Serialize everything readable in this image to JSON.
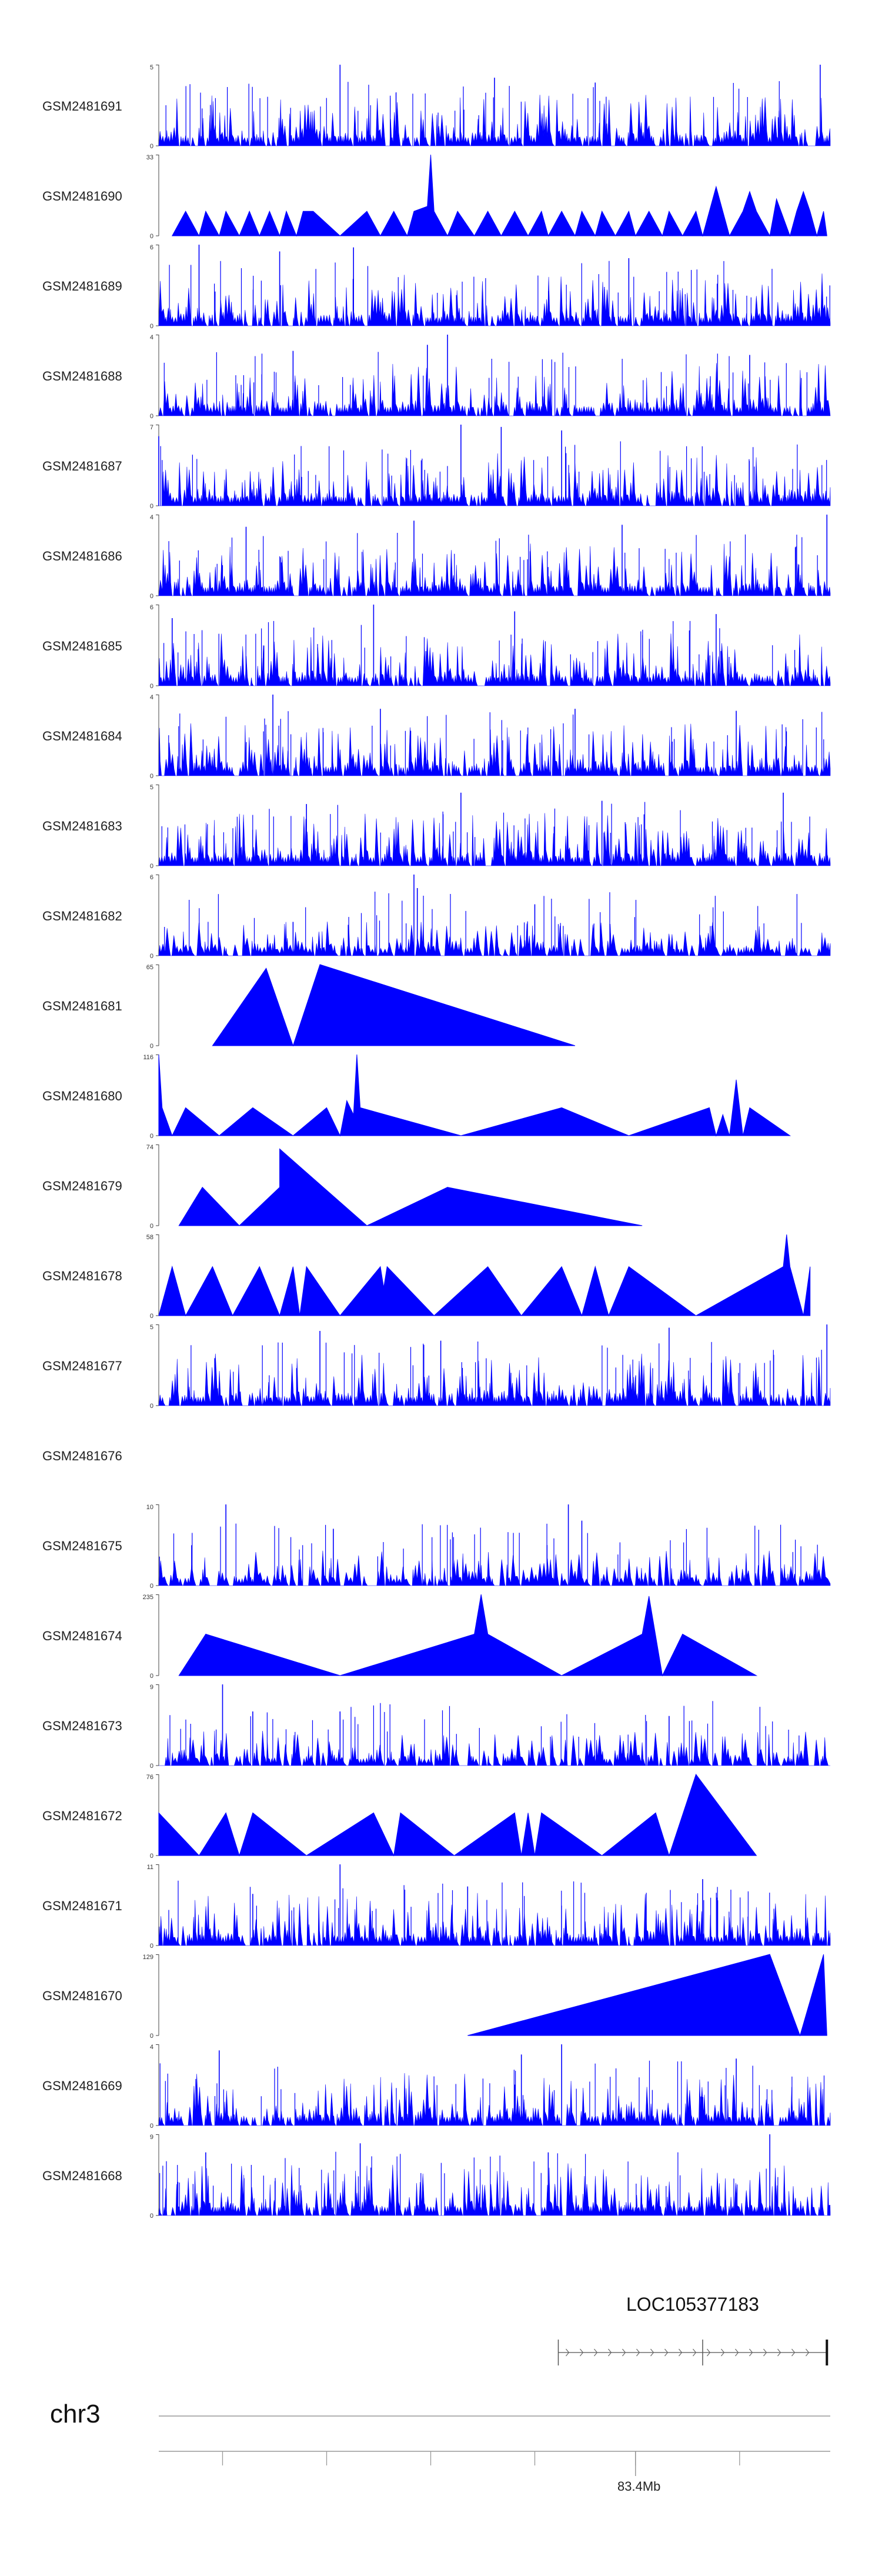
{
  "chart_data": {
    "type": "area",
    "color": "#0000ff",
    "tracks": [
      {
        "name": "GSM2481691",
        "ymax": 5,
        "ylim": [
          0,
          5
        ],
        "style": "dense",
        "peaks": [
          [
            0.27,
            5
          ],
          [
            0.985,
            5
          ],
          [
            0.5,
            4.2
          ],
          [
            0.65,
            3.9
          ]
        ]
      },
      {
        "name": "GSM2481690",
        "ymax": 33,
        "ylim": [
          0,
          33
        ],
        "style": "sparse",
        "range": [
          0.02,
          0.995
        ],
        "points": [
          [
            0.02,
            0
          ],
          [
            0.04,
            10
          ],
          [
            0.06,
            0
          ],
          [
            0.07,
            10
          ],
          [
            0.09,
            0
          ],
          [
            0.1,
            10
          ],
          [
            0.12,
            0
          ],
          [
            0.135,
            10
          ],
          [
            0.15,
            0
          ],
          [
            0.165,
            10
          ],
          [
            0.18,
            0
          ],
          [
            0.19,
            10
          ],
          [
            0.205,
            0
          ],
          [
            0.215,
            10
          ],
          [
            0.23,
            10
          ],
          [
            0.27,
            0
          ],
          [
            0.31,
            10
          ],
          [
            0.33,
            0
          ],
          [
            0.35,
            10
          ],
          [
            0.37,
            0
          ],
          [
            0.38,
            10
          ],
          [
            0.4,
            12
          ],
          [
            0.405,
            33
          ],
          [
            0.41,
            10
          ],
          [
            0.43,
            0
          ],
          [
            0.445,
            10
          ],
          [
            0.47,
            0
          ],
          [
            0.49,
            10
          ],
          [
            0.51,
            0
          ],
          [
            0.53,
            10
          ],
          [
            0.55,
            0
          ],
          [
            0.57,
            10
          ],
          [
            0.58,
            0
          ],
          [
            0.6,
            10
          ],
          [
            0.62,
            0
          ],
          [
            0.63,
            10
          ],
          [
            0.65,
            0
          ],
          [
            0.66,
            10
          ],
          [
            0.68,
            0
          ],
          [
            0.7,
            10
          ],
          [
            0.71,
            0
          ],
          [
            0.73,
            10
          ],
          [
            0.75,
            0
          ],
          [
            0.76,
            10
          ],
          [
            0.78,
            0
          ],
          [
            0.8,
            10
          ],
          [
            0.81,
            0
          ],
          [
            0.82,
            10
          ],
          [
            0.83,
            20
          ],
          [
            0.84,
            10
          ],
          [
            0.85,
            0
          ],
          [
            0.87,
            10
          ],
          [
            0.88,
            18
          ],
          [
            0.89,
            10
          ],
          [
            0.91,
            0
          ],
          [
            0.92,
            15
          ],
          [
            0.94,
            0
          ],
          [
            0.95,
            10
          ],
          [
            0.96,
            18
          ],
          [
            0.97,
            10
          ],
          [
            0.98,
            0
          ],
          [
            0.99,
            10
          ],
          [
            0.995,
            0
          ]
        ]
      },
      {
        "name": "GSM2481689",
        "ymax": 6,
        "ylim": [
          0,
          6
        ],
        "style": "dense",
        "peaks": [
          [
            0.06,
            6
          ],
          [
            0.18,
            5.5
          ],
          [
            0.29,
            5.8
          ],
          [
            0.7,
            5
          ]
        ]
      },
      {
        "name": "GSM2481688",
        "ymax": 4,
        "ylim": [
          0,
          4
        ],
        "style": "dense",
        "peaks": [
          [
            0.43,
            4
          ],
          [
            0.4,
            3.5
          ],
          [
            0.2,
            3.2
          ],
          [
            0.88,
            3
          ]
        ]
      },
      {
        "name": "GSM2481687",
        "ymax": 7,
        "ylim": [
          0,
          7
        ],
        "style": "dense",
        "peaks": [
          [
            0.45,
            7
          ],
          [
            0.51,
            6.8
          ],
          [
            0.6,
            6.5
          ],
          [
            0.0,
            6
          ]
        ]
      },
      {
        "name": "GSM2481686",
        "ymax": 4,
        "ylim": [
          0,
          4
        ],
        "style": "dense",
        "peaks": [
          [
            0.995,
            4
          ],
          [
            0.38,
            3.7
          ],
          [
            0.69,
            3.5
          ],
          [
            0.13,
            3.4
          ]
        ]
      },
      {
        "name": "GSM2481685",
        "ymax": 6,
        "ylim": [
          0,
          6
        ],
        "style": "dense",
        "peaks": [
          [
            0.32,
            6
          ],
          [
            0.53,
            5.5
          ],
          [
            0.83,
            5.3
          ],
          [
            0.02,
            5
          ]
        ]
      },
      {
        "name": "GSM2481684",
        "ymax": 4,
        "ylim": [
          0,
          4
        ],
        "style": "dense",
        "peaks": [
          [
            0.17,
            4
          ],
          [
            0.33,
            3.3
          ],
          [
            0.62,
            3.3
          ],
          [
            0.86,
            3.2
          ]
        ]
      },
      {
        "name": "GSM2481683",
        "ymax": 5,
        "ylim": [
          0,
          5
        ],
        "style": "dense",
        "peaks": [
          [
            0.45,
            4.5
          ],
          [
            0.93,
            4.5
          ],
          [
            0.66,
            4
          ],
          [
            0.22,
            3.8
          ]
        ]
      },
      {
        "name": "GSM2481682",
        "ymax": 6,
        "ylim": [
          0,
          6
        ],
        "style": "dense_low",
        "peaks": [
          [
            0.38,
            6
          ],
          [
            0.385,
            5
          ],
          [
            0.56,
            3.8
          ],
          [
            0.2,
            2.5
          ]
        ]
      },
      {
        "name": "GSM2481681",
        "ymax": 65,
        "ylim": [
          0,
          65
        ],
        "style": "sparse",
        "range": [
          0.08,
          0.62
        ],
        "points": [
          [
            0.08,
            0
          ],
          [
            0.16,
            62
          ],
          [
            0.2,
            0
          ],
          [
            0.24,
            65
          ],
          [
            0.62,
            0
          ]
        ]
      },
      {
        "name": "GSM2481680",
        "ymax": 116,
        "ylim": [
          0,
          116
        ],
        "style": "sparse",
        "range": [
          0.0,
          0.94
        ],
        "points": [
          [
            0.0,
            116
          ],
          [
            0.005,
            40
          ],
          [
            0.02,
            0
          ],
          [
            0.04,
            40
          ],
          [
            0.09,
            0
          ],
          [
            0.14,
            40
          ],
          [
            0.2,
            0
          ],
          [
            0.25,
            40
          ],
          [
            0.27,
            0
          ],
          [
            0.28,
            50
          ],
          [
            0.29,
            30
          ],
          [
            0.295,
            116
          ],
          [
            0.3,
            40
          ],
          [
            0.45,
            0
          ],
          [
            0.6,
            40
          ],
          [
            0.7,
            0
          ],
          [
            0.82,
            40
          ],
          [
            0.83,
            0
          ],
          [
            0.84,
            30
          ],
          [
            0.85,
            0
          ],
          [
            0.86,
            80
          ],
          [
            0.87,
            0
          ],
          [
            0.88,
            40
          ],
          [
            0.94,
            0
          ]
        ]
      },
      {
        "name": "GSM2481679",
        "ymax": 74,
        "ylim": [
          0,
          74
        ],
        "style": "sparse",
        "range": [
          0.03,
          0.72
        ],
        "points": [
          [
            0.03,
            0
          ],
          [
            0.065,
            35
          ],
          [
            0.12,
            0
          ],
          [
            0.18,
            35
          ],
          [
            0.18,
            70
          ],
          [
            0.31,
            0
          ],
          [
            0.43,
            35
          ],
          [
            0.72,
            0
          ]
        ]
      },
      {
        "name": "GSM2481678",
        "ymax": 58,
        "ylim": [
          0,
          58
        ],
        "style": "sparse",
        "range": [
          0.0,
          0.97
        ],
        "points": [
          [
            0.0,
            0
          ],
          [
            0.02,
            35
          ],
          [
            0.04,
            0
          ],
          [
            0.08,
            35
          ],
          [
            0.11,
            0
          ],
          [
            0.15,
            35
          ],
          [
            0.18,
            0
          ],
          [
            0.2,
            35
          ],
          [
            0.21,
            0
          ],
          [
            0.22,
            35
          ],
          [
            0.27,
            0
          ],
          [
            0.33,
            35
          ],
          [
            0.335,
            20
          ],
          [
            0.34,
            35
          ],
          [
            0.41,
            0
          ],
          [
            0.49,
            35
          ],
          [
            0.54,
            0
          ],
          [
            0.6,
            35
          ],
          [
            0.63,
            0
          ],
          [
            0.65,
            35
          ],
          [
            0.67,
            0
          ],
          [
            0.7,
            35
          ],
          [
            0.8,
            0
          ],
          [
            0.93,
            35
          ],
          [
            0.935,
            58
          ],
          [
            0.94,
            35
          ],
          [
            0.96,
            0
          ],
          [
            0.97,
            35
          ]
        ]
      },
      {
        "name": "GSM2481677",
        "ymax": 5,
        "ylim": [
          0,
          5
        ],
        "style": "dense",
        "peaks": [
          [
            0.995,
            5
          ],
          [
            0.24,
            4.6
          ],
          [
            0.76,
            4.8
          ],
          [
            0.42,
            4
          ]
        ]
      },
      {
        "name": "GSM2481676",
        "ymax": null,
        "style": "empty"
      },
      {
        "name": "GSM2481675",
        "ymax": 10,
        "ylim": [
          0,
          10
        ],
        "style": "dense_low",
        "peaks": [
          [
            0.1,
            10
          ],
          [
            0.61,
            10
          ],
          [
            0.26,
            7
          ],
          [
            0.63,
            8
          ]
        ]
      },
      {
        "name": "GSM2481674",
        "ymax": 235,
        "ylim": [
          0,
          235
        ],
        "style": "sparse",
        "range": [
          0.03,
          0.89
        ],
        "points": [
          [
            0.03,
            0
          ],
          [
            0.07,
            120
          ],
          [
            0.27,
            0
          ],
          [
            0.47,
            120
          ],
          [
            0.48,
            235
          ],
          [
            0.49,
            120
          ],
          [
            0.6,
            0
          ],
          [
            0.72,
            120
          ],
          [
            0.73,
            230
          ],
          [
            0.75,
            0
          ],
          [
            0.78,
            120
          ],
          [
            0.89,
            0
          ]
        ]
      },
      {
        "name": "GSM2481673",
        "ymax": 9,
        "ylim": [
          0,
          9
        ],
        "style": "dense_low",
        "peaks": [
          [
            0.095,
            9
          ],
          [
            0.14,
            6
          ],
          [
            0.27,
            6
          ],
          [
            0.76,
            5.5
          ]
        ]
      },
      {
        "name": "GSM2481672",
        "ymax": 76,
        "ylim": [
          0,
          76
        ],
        "style": "sparse",
        "range": [
          0.0,
          0.89
        ],
        "points": [
          [
            0.0,
            40
          ],
          [
            0.06,
            0
          ],
          [
            0.1,
            40
          ],
          [
            0.12,
            0
          ],
          [
            0.14,
            40
          ],
          [
            0.22,
            0
          ],
          [
            0.32,
            40
          ],
          [
            0.35,
            0
          ],
          [
            0.36,
            40
          ],
          [
            0.44,
            0
          ],
          [
            0.53,
            40
          ],
          [
            0.54,
            0
          ],
          [
            0.55,
            40
          ],
          [
            0.56,
            0
          ],
          [
            0.57,
            40
          ],
          [
            0.66,
            0
          ],
          [
            0.74,
            40
          ],
          [
            0.76,
            0
          ],
          [
            0.8,
            76
          ],
          [
            0.89,
            0
          ]
        ]
      },
      {
        "name": "GSM2481671",
        "ymax": 11,
        "ylim": [
          0,
          11
        ],
        "style": "dense",
        "peaks": [
          [
            0.27,
            11
          ],
          [
            0.81,
            9
          ],
          [
            0.46,
            8
          ],
          [
            0.14,
            7
          ]
        ]
      },
      {
        "name": "GSM2481670",
        "ymax": 129,
        "ylim": [
          0,
          129
        ],
        "style": "sparse",
        "range": [
          0.46,
          0.995
        ],
        "points": [
          [
            0.46,
            0
          ],
          [
            0.91,
            129
          ],
          [
            0.955,
            0
          ],
          [
            0.99,
            129
          ],
          [
            0.995,
            0
          ]
        ]
      },
      {
        "name": "GSM2481669",
        "ymax": 4,
        "ylim": [
          0,
          4
        ],
        "style": "dense",
        "peaks": [
          [
            0.6,
            4
          ],
          [
            0.09,
            3.7
          ],
          [
            0.54,
            3.5
          ],
          [
            0.86,
            3.3
          ]
        ]
      },
      {
        "name": "GSM2481668",
        "ymax": 9,
        "ylim": [
          0,
          9
        ],
        "style": "dense",
        "peaks": [
          [
            0.91,
            9
          ],
          [
            0.3,
            8
          ],
          [
            0.07,
            7
          ],
          [
            0.58,
            7
          ]
        ]
      }
    ],
    "gene": {
      "name": "LOC105377183",
      "strand": "+",
      "span": [
        0.595,
        0.995
      ],
      "exons": [
        0.595,
        0.81,
        0.995
      ]
    },
    "chromosome": "chr3",
    "position_label": "83.4Mb"
  }
}
